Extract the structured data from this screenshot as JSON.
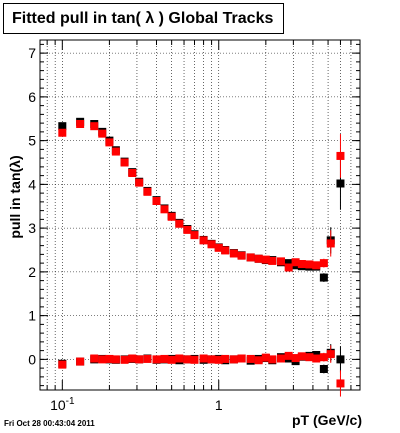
{
  "chart_data": {
    "type": "scatter",
    "title": "Fitted pull in tan( λ )  Global Tracks",
    "xlabel": "pT (GeV/c)",
    "ylabel": "pull in tan(λ)",
    "x_scale": "log",
    "xlim": [
      0.072,
      8.0
    ],
    "ylim": [
      -0.7,
      7.3
    ],
    "grid": true,
    "x_major_ticks": [
      {
        "value": 0.1,
        "base": "10",
        "exp": "-1"
      },
      {
        "value": 1,
        "base": "1",
        "exp": ""
      }
    ],
    "y_ticks": [
      0,
      1,
      2,
      3,
      4,
      5,
      6,
      7
    ],
    "colors": {
      "black_series": "#000000",
      "red_series": "#ff0000"
    },
    "series": [
      {
        "color": "#000000",
        "upper": {
          "x": [
            0.1,
            0.13,
            0.16,
            0.18,
            0.2,
            0.22,
            0.25,
            0.28,
            0.31,
            0.35,
            0.4,
            0.45,
            0.5,
            0.56,
            0.63,
            0.7,
            0.8,
            0.9,
            1.0,
            1.1,
            1.25,
            1.4,
            1.6,
            1.8,
            2.0,
            2.2,
            2.5,
            2.8,
            3.1,
            3.4,
            3.8,
            4.2,
            4.7,
            5.2,
            6.0
          ],
          "y": [
            5.33,
            5.43,
            5.38,
            5.2,
            5.0,
            4.78,
            4.52,
            4.28,
            4.06,
            3.85,
            3.64,
            3.45,
            3.28,
            3.12,
            2.98,
            2.86,
            2.73,
            2.64,
            2.56,
            2.5,
            2.43,
            2.38,
            2.33,
            2.3,
            2.27,
            2.27,
            2.22,
            2.2,
            2.15,
            2.13,
            2.12,
            2.12,
            1.87,
            2.72,
            4.02
          ],
          "err": [
            0.05,
            0.04,
            0.04,
            0.03,
            0.03,
            0.02,
            0.02,
            0.02,
            0.02,
            0.02,
            0.02,
            0.02,
            0.02,
            0.02,
            0.02,
            0.02,
            0.02,
            0.02,
            0.02,
            0.02,
            0.02,
            0.03,
            0.03,
            0.03,
            0.04,
            0.05,
            0.06,
            0.06,
            0.07,
            0.07,
            0.08,
            0.08,
            0.1,
            0.3,
            0.6
          ]
        },
        "lower": {
          "x": [
            0.1,
            0.13,
            0.16,
            0.18,
            0.2,
            0.22,
            0.25,
            0.28,
            0.31,
            0.35,
            0.4,
            0.45,
            0.5,
            0.56,
            0.63,
            0.7,
            0.8,
            0.9,
            1.0,
            1.1,
            1.25,
            1.4,
            1.6,
            1.8,
            2.0,
            2.2,
            2.5,
            2.8,
            3.1,
            3.4,
            3.8,
            4.2,
            4.7,
            5.2,
            6.0
          ],
          "y": [
            -0.1,
            -0.05,
            0.0,
            0.01,
            0.0,
            -0.01,
            0.0,
            0.01,
            0.0,
            0.02,
            -0.01,
            0.0,
            0.01,
            -0.02,
            0.0,
            0.01,
            -0.01,
            0.0,
            0.01,
            -0.02,
            0.0,
            0.02,
            -0.03,
            0.01,
            0.03,
            -0.02,
            0.05,
            0.02,
            -0.04,
            0.06,
            0.08,
            0.1,
            -0.22,
            0.15,
            0.0
          ],
          "err": [
            0.03,
            0.02,
            0.02,
            0.02,
            0.02,
            0.02,
            0.01,
            0.01,
            0.01,
            0.01,
            0.01,
            0.01,
            0.01,
            0.01,
            0.01,
            0.01,
            0.01,
            0.01,
            0.01,
            0.01,
            0.02,
            0.02,
            0.02,
            0.02,
            0.03,
            0.03,
            0.04,
            0.04,
            0.05,
            0.05,
            0.06,
            0.07,
            0.1,
            0.2,
            0.3
          ]
        }
      },
      {
        "color": "#ff0000",
        "upper": {
          "x": [
            0.1,
            0.13,
            0.16,
            0.18,
            0.2,
            0.22,
            0.25,
            0.28,
            0.31,
            0.35,
            0.4,
            0.45,
            0.5,
            0.56,
            0.63,
            0.7,
            0.8,
            0.9,
            1.0,
            1.1,
            1.25,
            1.4,
            1.6,
            1.8,
            2.0,
            2.2,
            2.5,
            2.8,
            3.1,
            3.4,
            3.8,
            4.2,
            4.7,
            5.2,
            6.0
          ],
          "y": [
            5.18,
            5.38,
            5.33,
            5.16,
            4.96,
            4.75,
            4.5,
            4.26,
            4.04,
            3.83,
            3.62,
            3.43,
            3.26,
            3.1,
            2.96,
            2.84,
            2.72,
            2.63,
            2.55,
            2.49,
            2.42,
            2.37,
            2.33,
            2.3,
            2.28,
            2.25,
            2.24,
            2.1,
            2.22,
            2.18,
            2.17,
            2.15,
            2.2,
            2.65,
            4.65
          ],
          "err": [
            0.05,
            0.04,
            0.04,
            0.03,
            0.03,
            0.02,
            0.02,
            0.02,
            0.02,
            0.02,
            0.02,
            0.02,
            0.02,
            0.02,
            0.02,
            0.02,
            0.02,
            0.02,
            0.02,
            0.02,
            0.02,
            0.03,
            0.03,
            0.03,
            0.04,
            0.05,
            0.06,
            0.06,
            0.07,
            0.07,
            0.08,
            0.08,
            0.1,
            0.3,
            0.5
          ]
        },
        "lower": {
          "x": [
            0.1,
            0.13,
            0.16,
            0.18,
            0.2,
            0.22,
            0.25,
            0.28,
            0.31,
            0.35,
            0.4,
            0.45,
            0.5,
            0.56,
            0.63,
            0.7,
            0.8,
            0.9,
            1.0,
            1.1,
            1.25,
            1.4,
            1.6,
            1.8,
            2.0,
            2.2,
            2.5,
            2.8,
            3.1,
            3.4,
            3.8,
            4.2,
            4.7,
            5.2,
            6.0
          ],
          "y": [
            -0.12,
            -0.05,
            0.02,
            0.0,
            0.01,
            0.0,
            -0.01,
            0.02,
            0.0,
            0.01,
            0.0,
            0.01,
            -0.01,
            0.02,
            0.0,
            -0.01,
            0.02,
            0.0,
            -0.01,
            0.01,
            0.0,
            0.02,
            0.01,
            -0.02,
            0.04,
            0.0,
            0.02,
            0.08,
            0.03,
            0.07,
            0.05,
            0.02,
            0.05,
            0.12,
            -0.55
          ],
          "err": [
            0.03,
            0.02,
            0.02,
            0.02,
            0.02,
            0.02,
            0.01,
            0.01,
            0.01,
            0.01,
            0.01,
            0.01,
            0.01,
            0.01,
            0.01,
            0.01,
            0.01,
            0.01,
            0.01,
            0.01,
            0.02,
            0.02,
            0.02,
            0.02,
            0.03,
            0.03,
            0.04,
            0.04,
            0.05,
            0.05,
            0.06,
            0.07,
            0.1,
            0.2,
            0.3
          ]
        }
      }
    ]
  },
  "footer": {
    "timestamp": "Fri Oct 28 00:43:04 2011"
  }
}
